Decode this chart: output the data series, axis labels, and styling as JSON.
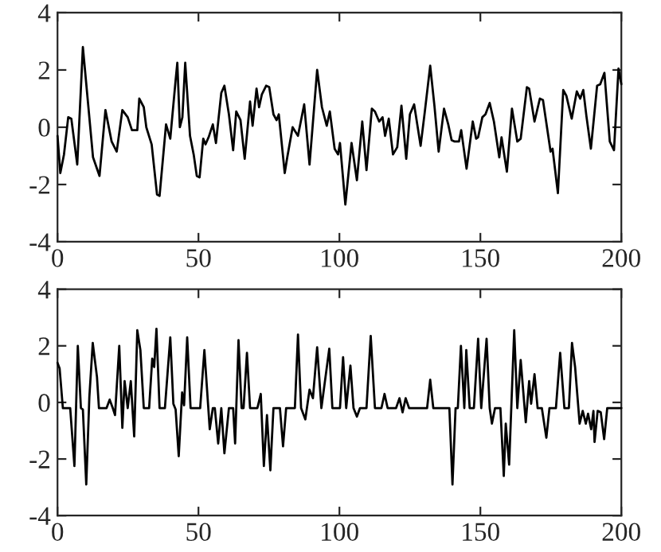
{
  "chart_data": [
    {
      "type": "line",
      "xlim": [
        0,
        200
      ],
      "ylim": [
        -4,
        4
      ],
      "xticks": [
        0,
        50,
        100,
        150,
        200
      ],
      "yticks": [
        -4,
        -2,
        0,
        2,
        4
      ],
      "grid": false,
      "line_style": "solid",
      "marker": "none",
      "series": [
        {
          "color": "#000000",
          "x": [
            0,
            1,
            2.3,
            3.8,
            4.9,
            7,
            9,
            12.6,
            14.9,
            17,
            19.2,
            21,
            23,
            24.9,
            26.4,
            28.3,
            29,
            30.6,
            31.5,
            33.4,
            35.3,
            36.2,
            38.5,
            40,
            41.9,
            42.5,
            43.4,
            44.3,
            45.3,
            47,
            48.3,
            49.4,
            50.4,
            51.7,
            52.5,
            53.6,
            55.1,
            56.2,
            58.1,
            59.2,
            60.8,
            62.3,
            63.4,
            64.9,
            66.4,
            68.3,
            69.2,
            70.6,
            71.5,
            72.5,
            74,
            75.1,
            76.6,
            77.7,
            78.5,
            80.6,
            81.5,
            83.4,
            85.3,
            87.5,
            89.4,
            92.1,
            93.8,
            95.5,
            96.6,
            98.3,
            99.5,
            100.2,
            102.1,
            104.3,
            106.2,
            108.1,
            109.6,
            111.5,
            112.6,
            114.1,
            115.3,
            116.2,
            117.5,
            119,
            120.5,
            122,
            123.7,
            125,
            126.5,
            128.8,
            130.3,
            132.2,
            133.7,
            135.2,
            137.1,
            138.6,
            139.8,
            140.9,
            142.4,
            143.2,
            145.1,
            147.3,
            148.5,
            149.2,
            150.7,
            151.8,
            153.3,
            154.8,
            156.7,
            157.5,
            159.4,
            161.2,
            163.1,
            164.3,
            166.5,
            167.3,
            169.2,
            171.1,
            172.2,
            174.9,
            175.6,
            177.5,
            179.4,
            180.5,
            182.4,
            184.2,
            185.4,
            186.5,
            187.6,
            189.2,
            191.4,
            192.5,
            194,
            195.9,
            197.4,
            199,
            200
          ],
          "values": [
            -0.3,
            -1.6,
            -0.95,
            0.35,
            0.3,
            -1.3,
            2.8,
            -1.05,
            -1.7,
            0.6,
            -0.5,
            -0.85,
            0.6,
            0.35,
            -0.1,
            -0.1,
            1.0,
            0.7,
            0,
            -0.6,
            -2.35,
            -2.4,
            0.1,
            -0.4,
            1.65,
            2.25,
            0,
            0.35,
            2.25,
            -0.3,
            -0.95,
            -1.7,
            -1.75,
            -0.4,
            -0.6,
            -0.35,
            0.1,
            -0.55,
            1.2,
            1.45,
            0.45,
            -0.8,
            0.55,
            0.25,
            -1.1,
            0.9,
            0.05,
            1.35,
            0.7,
            1.15,
            1.45,
            1.4,
            0.45,
            0.25,
            0.45,
            -1.6,
            -1.05,
            0,
            -0.3,
            0.8,
            -1.3,
            2.0,
            0.7,
            0.05,
            0.55,
            -0.75,
            -0.95,
            -0.55,
            -2.7,
            -0.55,
            -1.85,
            0.2,
            -1.5,
            0.65,
            0.55,
            0.2,
            0.35,
            -0.3,
            0.3,
            -0.95,
            -0.7,
            0.75,
            -1.1,
            0.45,
            0.8,
            -0.65,
            0.55,
            2.15,
            0.75,
            -0.85,
            0.65,
            0.1,
            -0.45,
            -0.5,
            -0.5,
            -0.1,
            -1.45,
            0.2,
            -0.4,
            -0.35,
            0.35,
            0.45,
            0.85,
            0.2,
            -1.05,
            -0.35,
            -1.55,
            0.65,
            -0.5,
            -0.4,
            1.4,
            1.35,
            0.2,
            1.0,
            0.95,
            -0.85,
            -0.75,
            -2.3,
            1.3,
            1.1,
            0.3,
            1.25,
            1.0,
            1.3,
            0.4,
            -0.75,
            1.45,
            1.5,
            1.9,
            -0.5,
            -0.8,
            2.05,
            1.5
          ]
        }
      ]
    },
    {
      "type": "line",
      "xlim": [
        0,
        200
      ],
      "ylim": [
        -4,
        4
      ],
      "xticks": [
        0,
        50,
        100,
        150,
        200
      ],
      "yticks": [
        -4,
        -2,
        0,
        2,
        4
      ],
      "grid": false,
      "line_style": "solid",
      "marker": "none",
      "series": [
        {
          "color": "#000000",
          "x": [
            0,
            0.75,
            1.9,
            4.5,
            6,
            7.2,
            8.3,
            9,
            10.2,
            11.3,
            12.5,
            14,
            14.7,
            17.4,
            18.5,
            19.6,
            20.4,
            21.9,
            23,
            23.8,
            24.9,
            26,
            27.2,
            28.3,
            29.4,
            30.6,
            32.5,
            33.6,
            34.3,
            35.1,
            36.2,
            38.1,
            40,
            41.1,
            41.9,
            43,
            44.2,
            44.9,
            46,
            47.2,
            50.6,
            52.1,
            54,
            55.1,
            55.8,
            57,
            58.1,
            59.2,
            60.8,
            62.3,
            63,
            64.2,
            65.3,
            66,
            67.2,
            68.3,
            70.9,
            72.1,
            73.2,
            74.3,
            75.5,
            76.6,
            78.9,
            80,
            81.1,
            84.2,
            85.3,
            86.4,
            87.9,
            89.4,
            90.6,
            92.1,
            93.6,
            96.4,
            97.5,
            100.2,
            101.3,
            102.4,
            103.9,
            105,
            106.2,
            107.3,
            109.6,
            111.1,
            112.6,
            114.9,
            116,
            117.1,
            120.1,
            121.3,
            122.4,
            123.5,
            124.7,
            131.1,
            132.2,
            133.3,
            139,
            140.1,
            141.2,
            142,
            143.1,
            144.3,
            145,
            146.2,
            147.7,
            149.2,
            150.3,
            152.2,
            153.3,
            154.1,
            155.2,
            157.1,
            158.3,
            159,
            160.2,
            162,
            163.1,
            164.3,
            166.1,
            167.3,
            168,
            169.2,
            170.3,
            171.8,
            173.4,
            174.5,
            176.8,
            178.3,
            179.8,
            181.4,
            182.5,
            183.6,
            185.2,
            186.3,
            187.4,
            188.2,
            189.3,
            190.1,
            190.5,
            191.6,
            192.7,
            193.9,
            195,
            200
          ],
          "values": [
            1.4,
            1.2,
            -0.2,
            -0.2,
            -2.25,
            2.0,
            -0.2,
            -0.25,
            -2.9,
            0.2,
            2.1,
            0.9,
            -0.2,
            -0.2,
            0.1,
            -0.2,
            -0.45,
            2.0,
            -0.9,
            0.75,
            -0.2,
            0.75,
            -1.2,
            2.55,
            1.85,
            -0.2,
            -0.2,
            1.55,
            1.25,
            2.6,
            -0.2,
            -0.2,
            2.3,
            -0.05,
            -0.25,
            -1.9,
            0.35,
            -0.1,
            2.3,
            -0.2,
            -0.2,
            1.85,
            -0.95,
            -0.2,
            -0.2,
            -1.45,
            -0.2,
            -1.8,
            -0.2,
            -0.2,
            -1.45,
            2.2,
            -0.2,
            -0.2,
            1.75,
            -0.2,
            -0.2,
            0.3,
            -2.25,
            -0.45,
            -2.4,
            -0.2,
            -0.2,
            -1.55,
            -0.2,
            -0.2,
            2.4,
            -0.2,
            -0.6,
            0.45,
            0.15,
            1.95,
            -0.2,
            1.9,
            -0.2,
            -0.2,
            1.6,
            -0.2,
            1.3,
            -0.2,
            -0.5,
            -0.2,
            -0.2,
            2.35,
            -0.2,
            -0.2,
            0.3,
            -0.2,
            -0.2,
            0.15,
            -0.35,
            0.15,
            -0.2,
            -0.2,
            0.8,
            -0.2,
            -0.2,
            -2.9,
            -0.2,
            -0.2,
            2.0,
            -0.2,
            1.85,
            -0.2,
            -0.2,
            2.25,
            -0.2,
            2.25,
            -0.2,
            -0.75,
            -0.2,
            -0.2,
            -2.6,
            -0.75,
            -2.2,
            2.55,
            -0.2,
            1.5,
            -0.7,
            0.75,
            -0.05,
            1.0,
            -0.2,
            -0.2,
            -1.25,
            -0.2,
            -0.2,
            1.75,
            -0.2,
            -0.2,
            2.1,
            1.25,
            -0.75,
            -0.3,
            -0.75,
            -0.4,
            -0.95,
            -0.3,
            -1.4,
            -0.3,
            -0.35,
            -1.3,
            -0.2,
            -0.2
          ]
        }
      ]
    }
  ]
}
